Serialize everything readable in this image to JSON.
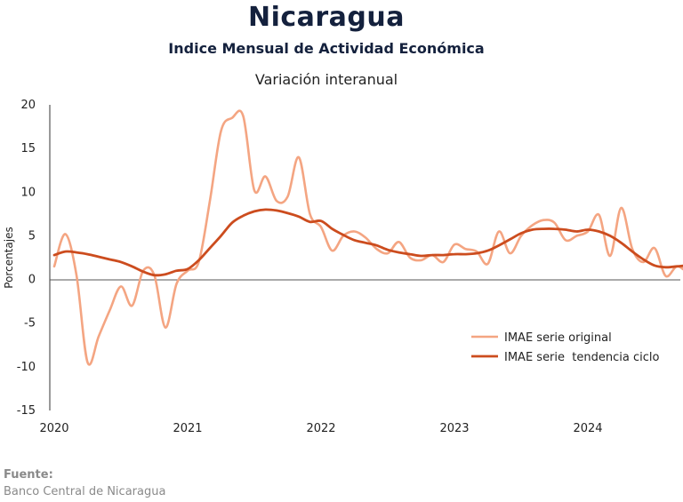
{
  "header": {
    "title": "Nicaragua",
    "subtitle": "Indice Mensual de  Actividad Económica",
    "subtitle2": "Variación interanual"
  },
  "footer": {
    "source_label": "Fuente:",
    "source_text": "Banco Central de Nicaragua"
  },
  "chart_data": {
    "type": "line",
    "ylabel": "Porcentajes",
    "ylim": [
      -15,
      20
    ],
    "yticks": [
      20,
      15,
      10,
      5,
      0,
      -5,
      -10,
      -15
    ],
    "xlim": [
      2020,
      2024.97
    ],
    "xticks": [
      "2020",
      "2021",
      "2022",
      "2023",
      "2024"
    ],
    "legend_position": "bottom-right",
    "series": [
      {
        "name": "IMAE serie original",
        "color": "#f4a582",
        "x": [
          2020.0,
          2020.083,
          2020.167,
          2020.25,
          2020.333,
          2020.417,
          2020.5,
          2020.583,
          2020.667,
          2020.75,
          2020.833,
          2020.917,
          2021.0,
          2021.083,
          2021.167,
          2021.25,
          2021.333,
          2021.417,
          2021.5,
          2021.583,
          2021.667,
          2021.75,
          2021.833,
          2021.917,
          2022.0,
          2022.083,
          2022.167,
          2022.25,
          2022.333,
          2022.417,
          2022.5,
          2022.583,
          2022.667,
          2022.75,
          2022.833,
          2022.917,
          2023.0,
          2023.083,
          2023.167,
          2023.25,
          2023.333,
          2023.417,
          2023.5,
          2023.583,
          2023.667,
          2023.75,
          2023.833,
          2023.917,
          2024.0,
          2024.083,
          2024.167,
          2024.25,
          2024.333,
          2024.417,
          2024.5,
          2024.583,
          2024.667,
          2024.75,
          2024.833,
          2024.917
        ],
        "y": [
          1.5,
          5.2,
          0.5,
          -9.5,
          -6.5,
          -3.5,
          -0.8,
          -3.0,
          1.0,
          0.5,
          -5.5,
          -0.5,
          1.0,
          2.0,
          9.0,
          17.0,
          18.5,
          18.7,
          10.2,
          11.8,
          9.0,
          9.5,
          14.0,
          7.5,
          6.0,
          3.3,
          5.0,
          5.5,
          4.8,
          3.5,
          3.0,
          4.3,
          2.5,
          2.2,
          2.8,
          2.0,
          4.0,
          3.5,
          3.2,
          1.8,
          5.5,
          3.0,
          5.0,
          6.2,
          6.8,
          6.5,
          4.5,
          5.0,
          5.5,
          7.4,
          2.7,
          8.2,
          3.5,
          2.0,
          3.6,
          0.4,
          1.5,
          1.0,
          2.2,
          1.3
        ]
      },
      {
        "name": "IMAE serie  tendencia ciclo",
        "color": "#cc4c1e",
        "x": [
          2020.0,
          2020.083,
          2020.167,
          2020.25,
          2020.333,
          2020.417,
          2020.5,
          2020.583,
          2020.667,
          2020.75,
          2020.833,
          2020.917,
          2021.0,
          2021.083,
          2021.167,
          2021.25,
          2021.333,
          2021.417,
          2021.5,
          2021.583,
          2021.667,
          2021.75,
          2021.833,
          2021.917,
          2022.0,
          2022.083,
          2022.167,
          2022.25,
          2022.333,
          2022.417,
          2022.5,
          2022.583,
          2022.667,
          2022.75,
          2022.833,
          2022.917,
          2023.0,
          2023.083,
          2023.167,
          2023.25,
          2023.333,
          2023.417,
          2023.5,
          2023.583,
          2023.667,
          2023.75,
          2023.833,
          2023.917,
          2024.0,
          2024.083,
          2024.167,
          2024.25,
          2024.333,
          2024.417,
          2024.5,
          2024.583,
          2024.667,
          2024.75,
          2024.833,
          2024.917
        ],
        "y": [
          2.8,
          3.2,
          3.1,
          2.9,
          2.6,
          2.3,
          2.0,
          1.5,
          0.9,
          0.5,
          0.6,
          1.0,
          1.2,
          2.2,
          3.6,
          5.0,
          6.5,
          7.3,
          7.8,
          8.0,
          7.9,
          7.6,
          7.2,
          6.6,
          6.7,
          5.8,
          5.1,
          4.5,
          4.2,
          3.9,
          3.4,
          3.1,
          2.9,
          2.7,
          2.8,
          2.8,
          2.9,
          2.9,
          3.0,
          3.3,
          3.9,
          4.6,
          5.3,
          5.7,
          5.8,
          5.8,
          5.7,
          5.5,
          5.7,
          5.5,
          5.0,
          4.2,
          3.2,
          2.3,
          1.6,
          1.4,
          1.5,
          1.6,
          1.6,
          1.7
        ]
      }
    ]
  }
}
